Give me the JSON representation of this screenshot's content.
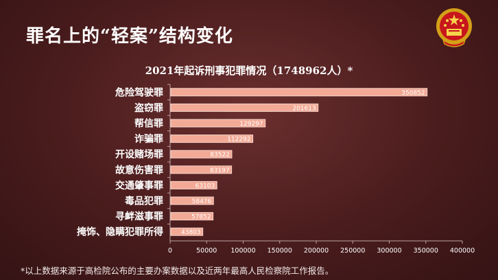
{
  "header": {
    "title": "罪名上的“轻案”结构变化"
  },
  "footnote": "*以上数据来源于高检院公布的主要办案数据以及近两年最高人民检察院工作报告。",
  "colors": {
    "bar": "#f2a995",
    "bar_stroke": "#f8d6cc",
    "text": "#ffffff",
    "axis": "#bfa3a3"
  },
  "chart_data": {
    "type": "bar",
    "orientation": "horizontal",
    "title": "2021年起诉刑事犯罪情况（1748962人）*",
    "categories": [
      "危险驾驶罪",
      "盗窃罪",
      "帮信罪",
      "诈骗罪",
      "开设赌场罪",
      "故意伤害罪",
      "交通肇事罪",
      "毒品犯罪",
      "寻衅滋事罪",
      "掩饰、隐瞒犯罪所得"
    ],
    "values": [
      350852,
      201613,
      129297,
      112292,
      83522,
      83197,
      63103,
      58476,
      57852,
      43803
    ],
    "value_labels": [
      "350852",
      "201613",
      "129297",
      "112292",
      "83522",
      "83197",
      "63103",
      "58476",
      "57852",
      "43803"
    ],
    "xlim": [
      0,
      400000
    ],
    "ticks": [
      0,
      50000,
      100000,
      150000,
      200000,
      250000,
      300000,
      350000,
      400000
    ],
    "tick_labels": [
      "0",
      "50000",
      "100000",
      "150000",
      "200000",
      "250000",
      "300000",
      "350000",
      "400000"
    ],
    "grid": false,
    "legend": "none"
  }
}
